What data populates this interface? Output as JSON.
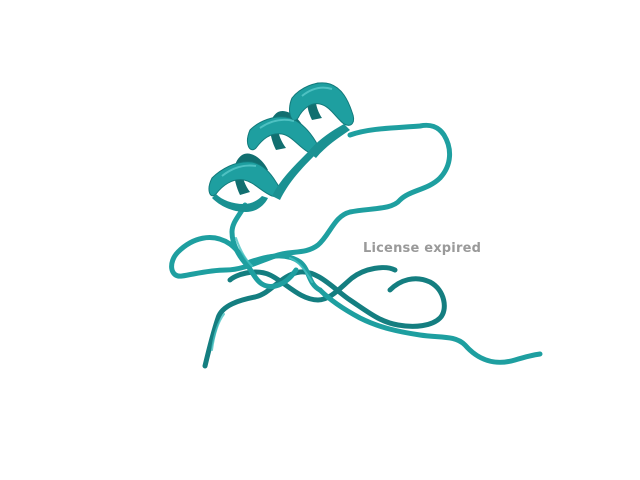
{
  "watermark": {
    "text": "License expired"
  },
  "render": {
    "background": "#ffffff",
    "ribbon_color": "#1e9fa0",
    "ribbon_dark": "#116f70",
    "ribbon_light": "#47c2c2",
    "watermark_color": "#9a9a9a"
  }
}
